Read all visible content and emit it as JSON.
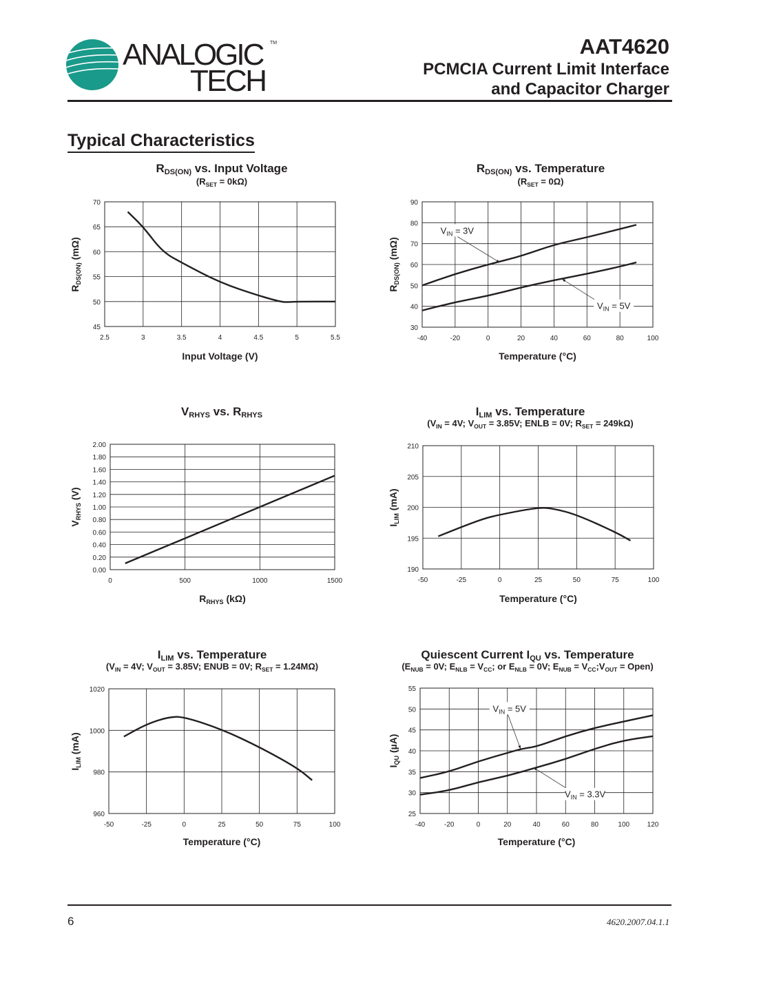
{
  "header": {
    "logo_text_top": "ANALOGIC",
    "logo_text_bottom": "TECH",
    "logo_tm": "TM",
    "part_number": "AAT4620",
    "subtitle_line1": "PCMCIA Current Limit Interface",
    "subtitle_line2": "and Capacitor Charger",
    "brand_color": "#1a9a8a"
  },
  "section_title": "Typical Characteristics",
  "footer": {
    "page_number": "6",
    "doc_id": "4620.2007.04.1.1"
  },
  "chart_data": [
    {
      "type": "line",
      "title": [
        {
          "t": "R"
        },
        {
          "s": "DS(ON)"
        },
        {
          "t": " vs. Input Voltage"
        }
      ],
      "subtitle": [
        {
          "t": "(R"
        },
        {
          "s": "SET"
        },
        {
          "t": " = 0kΩ)"
        }
      ],
      "xlabel": [
        {
          "t": "Input Voltage (V)"
        }
      ],
      "ylabel": [
        {
          "t": "R"
        },
        {
          "s": "DS(ON)"
        },
        {
          "t": " (mΩ)"
        }
      ],
      "xlim": [
        2.5,
        5.5
      ],
      "ylim": [
        45,
        70
      ],
      "xticks": [
        2.5,
        3,
        3.5,
        4,
        4.5,
        5,
        5.5
      ],
      "xtick_labels": [
        "2.5",
        "3",
        "3.5",
        "4",
        "4.5",
        "5",
        "5.5"
      ],
      "yticks": [
        45,
        50,
        55,
        60,
        65,
        70
      ],
      "ytick_labels": [
        "45",
        "50",
        "55",
        "60",
        "65",
        "70"
      ],
      "grid": true,
      "series": [
        {
          "x": [
            2.8,
            3.0,
            3.25,
            3.5,
            4.0,
            4.5,
            4.8,
            4.9,
            5.0,
            5.5
          ],
          "y": [
            68,
            65,
            60,
            57.8,
            53.8,
            51.2,
            49.9,
            49.9,
            50,
            50
          ]
        }
      ]
    },
    {
      "type": "line",
      "title": [
        {
          "t": "R"
        },
        {
          "s": "DS(ON)"
        },
        {
          "t": " vs. Temperature"
        }
      ],
      "subtitle": [
        {
          "t": "(R"
        },
        {
          "s": "SET"
        },
        {
          "t": " = 0Ω)"
        }
      ],
      "xlabel": [
        {
          "t": "Temperature (°C)"
        }
      ],
      "ylabel": [
        {
          "t": "R"
        },
        {
          "s": "DS(ON)"
        },
        {
          "t": " (mΩ)"
        }
      ],
      "xlim": [
        -40,
        100
      ],
      "ylim": [
        30,
        90
      ],
      "xticks": [
        -40,
        -20,
        0,
        20,
        40,
        60,
        80,
        100
      ],
      "xtick_labels": [
        "-40",
        "-20",
        "0",
        "20",
        "40",
        "60",
        "80",
        "100"
      ],
      "yticks": [
        30,
        40,
        50,
        60,
        70,
        80,
        90
      ],
      "ytick_labels": [
        "30",
        "40",
        "50",
        "60",
        "70",
        "80",
        "90"
      ],
      "grid": true,
      "series": [
        {
          "name": "VIN = 3V",
          "x": [
            -40,
            -20,
            0,
            20,
            40,
            60,
            80,
            90
          ],
          "y": [
            50,
            55.5,
            60,
            64,
            69.5,
            73,
            77,
            79
          ]
        },
        {
          "name": "VIN = 5V",
          "x": [
            -40,
            -20,
            0,
            20,
            40,
            60,
            80,
            90
          ],
          "y": [
            38,
            42,
            45,
            49,
            52.5,
            55.5,
            59,
            61
          ]
        }
      ],
      "annotations": [
        {
          "label": [
            {
              "t": "V"
            },
            {
              "s": "IN"
            },
            {
              "t": " = 3V"
            }
          ],
          "at": [
            -20,
            76
          ],
          "arrow_to": [
            7,
            61
          ]
        },
        {
          "label": [
            {
              "t": "V"
            },
            {
              "s": "IN"
            },
            {
              "t": " = 5V"
            }
          ],
          "at": [
            75,
            40
          ],
          "arrow_to": [
            45,
            53
          ]
        }
      ]
    },
    {
      "type": "line",
      "title": [
        {
          "t": "V"
        },
        {
          "s": "RHYS"
        },
        {
          "t": " vs. R"
        },
        {
          "s": "RHYS"
        }
      ],
      "subtitle": [],
      "xlabel": [
        {
          "t": "R"
        },
        {
          "s": "RHYS"
        },
        {
          "t": " (kΩ)"
        }
      ],
      "ylabel": [
        {
          "t": "V"
        },
        {
          "s": "RHYS"
        },
        {
          "t": " (V)"
        }
      ],
      "xlim": [
        0,
        1500
      ],
      "ylim": [
        0,
        2
      ],
      "xticks": [
        0,
        500,
        1000,
        1500
      ],
      "xtick_labels": [
        "0",
        "500",
        "1000",
        "1500"
      ],
      "yticks": [
        0,
        0.2,
        0.4,
        0.6,
        0.8,
        1.0,
        1.2,
        1.4,
        1.6,
        1.8,
        2.0
      ],
      "ytick_labels": [
        "0.00",
        "0.20",
        "0.40",
        "0.60",
        "0.80",
        "1.00",
        "1.20",
        "1.40",
        "1.60",
        "1.80",
        "2.00"
      ],
      "grid": true,
      "series": [
        {
          "x": [
            100,
            1500
          ],
          "y": [
            0.1,
            1.5
          ]
        }
      ]
    },
    {
      "type": "line",
      "title": [
        {
          "t": "I"
        },
        {
          "s": "LIM"
        },
        {
          "t": " vs. Temperature"
        }
      ],
      "subtitle": [
        {
          "t": "(V"
        },
        {
          "s": "IN"
        },
        {
          "t": " = 4V; V"
        },
        {
          "s": "OUT"
        },
        {
          "t": " = 3.85V; ENLB = 0V; R"
        },
        {
          "s": "SET"
        },
        {
          "t": " = 249kΩ)"
        }
      ],
      "xlabel": [
        {
          "t": "Temperature (°C)"
        }
      ],
      "ylabel": [
        {
          "t": "I"
        },
        {
          "s": "LIM"
        },
        {
          "t": " (mA)"
        }
      ],
      "xlim": [
        -50,
        100
      ],
      "ylim": [
        190,
        210
      ],
      "xticks": [
        -50,
        -25,
        0,
        25,
        50,
        75,
        100
      ],
      "xtick_labels": [
        "-50",
        "-25",
        "0",
        "25",
        "50",
        "75",
        "100"
      ],
      "yticks": [
        190,
        195,
        200,
        205,
        210
      ],
      "ytick_labels": [
        "190",
        "195",
        "200",
        "205",
        "210"
      ],
      "grid": true,
      "series": [
        {
          "x": [
            -40,
            -25,
            -10,
            0,
            25,
            35,
            50,
            75,
            85
          ],
          "y": [
            195.3,
            196.8,
            198.2,
            198.8,
            200,
            199.8,
            198.8,
            196,
            194.6
          ]
        }
      ]
    },
    {
      "type": "line",
      "title": [
        {
          "t": "I"
        },
        {
          "s": "LIM"
        },
        {
          "t": " vs. Temperature"
        }
      ],
      "subtitle": [
        {
          "t": "(V"
        },
        {
          "s": "IN"
        },
        {
          "t": " = 4V; V"
        },
        {
          "s": "OUT"
        },
        {
          "t": " = 3.85V; ENUB = 0V; R"
        },
        {
          "s": "SET"
        },
        {
          "t": " = 1.24MΩ)"
        }
      ],
      "xlabel": [
        {
          "t": "Temperature (°C)"
        }
      ],
      "ylabel": [
        {
          "t": "I"
        },
        {
          "s": "LIM"
        },
        {
          "t": " (mA)"
        }
      ],
      "xlim": [
        -50,
        100
      ],
      "ylim": [
        960,
        1020
      ],
      "xticks": [
        -50,
        -25,
        0,
        25,
        50,
        75,
        100
      ],
      "xtick_labels": [
        "-50",
        "-25",
        "0",
        "25",
        "50",
        "75",
        "100"
      ],
      "yticks": [
        960,
        980,
        1000,
        1020
      ],
      "ytick_labels": [
        "960",
        "980",
        "1000",
        "1020"
      ],
      "grid": true,
      "series": [
        {
          "x": [
            -40,
            -25,
            -10,
            0,
            25,
            50,
            75,
            85
          ],
          "y": [
            997,
            1003,
            1006.5,
            1006.5,
            1000.5,
            992,
            982,
            976
          ]
        }
      ]
    },
    {
      "type": "line",
      "title": [
        {
          "t": "Quiescent Current I"
        },
        {
          "s": "QU"
        },
        {
          "t": " vs. Temperature"
        }
      ],
      "subtitle": [
        {
          "t": "(E"
        },
        {
          "s": "NUB"
        },
        {
          "t": " = 0V; E"
        },
        {
          "s": "NLB"
        },
        {
          "t": " = V"
        },
        {
          "s": "CC"
        },
        {
          "t": "; or E"
        },
        {
          "s": "NLB"
        },
        {
          "t": " = 0V; E"
        },
        {
          "s": "NUB"
        },
        {
          "t": " = V"
        },
        {
          "s": "CC"
        },
        {
          "t": ";V"
        },
        {
          "s": "OUT"
        },
        {
          "t": " = Open)"
        }
      ],
      "xlabel": [
        {
          "t": "Temperature (°C)"
        }
      ],
      "ylabel": [
        {
          "t": "I"
        },
        {
          "s": "QU"
        },
        {
          "t": " (µA)"
        }
      ],
      "xlim": [
        -40,
        120
      ],
      "ylim": [
        25,
        55
      ],
      "xticks": [
        -40,
        -20,
        0,
        20,
        40,
        60,
        80,
        100,
        120
      ],
      "xtick_labels": [
        "-40",
        "-20",
        "0",
        "20",
        "40",
        "60",
        "80",
        "100",
        "120"
      ],
      "yticks": [
        25,
        30,
        35,
        40,
        45,
        50,
        55
      ],
      "ytick_labels": [
        "25",
        "30",
        "35",
        "40",
        "45",
        "50",
        "55"
      ],
      "grid": true,
      "series": [
        {
          "name": "VIN = 5V",
          "x": [
            -40,
            -20,
            0,
            20,
            30,
            40,
            60,
            80,
            100,
            120
          ],
          "y": [
            33.5,
            35,
            37.5,
            39.5,
            40.5,
            41,
            43.5,
            45.5,
            47,
            48.5
          ]
        },
        {
          "name": "VIN = 3.3V",
          "x": [
            -40,
            -20,
            0,
            20,
            40,
            60,
            80,
            100,
            120
          ],
          "y": [
            29.5,
            30.5,
            32.5,
            34,
            36,
            38,
            40.5,
            42.5,
            43.5
          ]
        }
      ],
      "annotations": [
        {
          "label": [
            {
              "t": "V"
            },
            {
              "s": "IN"
            },
            {
              "t": " = 5V"
            }
          ],
          "at": [
            20,
            50
          ],
          "arrow_to": [
            29,
            40.5
          ]
        },
        {
          "label": [
            {
              "t": "V"
            },
            {
              "s": "IN"
            },
            {
              "t": " = 3.3V"
            }
          ],
          "at": [
            72,
            29.5
          ],
          "arrow_to": [
            38,
            36
          ]
        }
      ]
    }
  ]
}
